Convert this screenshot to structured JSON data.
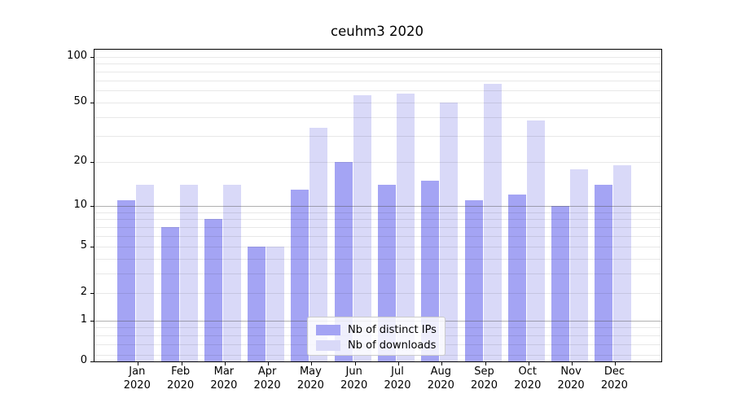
{
  "chart_data": {
    "type": "bar",
    "title": "ceuhm3 2020",
    "categories": [
      "Jan",
      "Feb",
      "Mar",
      "Apr",
      "May",
      "Jun",
      "Jul",
      "Aug",
      "Sep",
      "Oct",
      "Nov",
      "Dec"
    ],
    "category_year": "2020",
    "series": [
      {
        "name": "Nb of distinct IPs",
        "key": "distinct-ips",
        "color": "#a4a4f4",
        "values": [
          11,
          7,
          8,
          5,
          13,
          20,
          14,
          15,
          11,
          12,
          10,
          14
        ]
      },
      {
        "name": "Nb of downloads",
        "key": "downloads",
        "color": "#d9d9f8",
        "values": [
          14,
          14,
          14,
          5,
          34,
          56,
          57,
          50,
          66,
          38,
          18,
          19
        ]
      }
    ],
    "xlabel": "",
    "ylabel": "",
    "yaxis": {
      "scale": "log10(value+1)",
      "ylim": [
        0,
        100
      ],
      "tick_labels": [
        "100",
        "50",
        "20",
        "10",
        "5",
        "2",
        "1",
        "0"
      ],
      "tick_values": [
        100,
        50,
        20,
        10,
        5,
        2,
        1,
        0
      ],
      "minor_gridline_values": [
        0.2,
        0.4,
        0.6,
        0.8,
        3,
        4,
        6,
        7,
        8,
        9,
        30,
        40,
        60,
        70,
        80,
        90
      ],
      "major_gridline_values": [
        2,
        5,
        20,
        50,
        100
      ],
      "emphasized_gridline_values": [
        1,
        10
      ],
      "grid": true
    },
    "legend": {
      "position": "lower center"
    }
  },
  "colors": {
    "bar_distinct_ips": "#a4a4f4",
    "bar_downloads": "#d9d9f8",
    "grid_minor": "rgba(0,0,0,0.09)",
    "grid_emphasized": "rgba(80,80,80,0.45)",
    "axis_line": "#000000",
    "legend_border": "#cbcbcb"
  }
}
